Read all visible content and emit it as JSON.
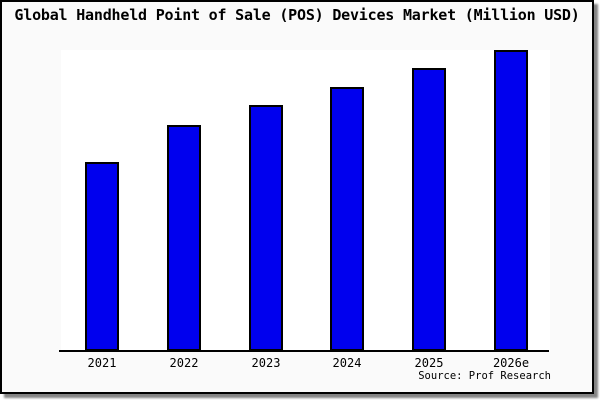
{
  "title": "Global Handheld Point of Sale (POS) Devices Market (Million USD)",
  "source_credit": "Source: Prof Research",
  "colors": {
    "bar_fill": "#0000ee",
    "bar_border": "#000000",
    "card_background": "#fafafa",
    "plot_background": "#ffffff",
    "axis": "#000000",
    "text": "#000000",
    "card_border": "#000000",
    "shadow": "#5a5a5a"
  },
  "chart_data": {
    "type": "bar",
    "title": "Global Handheld Point of Sale (POS) Devices Market (Million USD)",
    "categories": [
      "2021",
      "2022",
      "2023",
      "2024",
      "2025",
      "2026e"
    ],
    "values": [
      62.9,
      75.2,
      81.7,
      87.8,
      94.0,
      100.0
    ],
    "values_unit": "percent of tallest bar (y-axis has no tick labels; absolute Million USD values not shown)",
    "xlabel": "",
    "ylabel": "",
    "ylim": [
      0,
      100
    ],
    "grid": false,
    "legend": false,
    "y_axis_ticks_visible": false,
    "x_axis_line_visible": true,
    "bar_color": "#0000ee"
  }
}
